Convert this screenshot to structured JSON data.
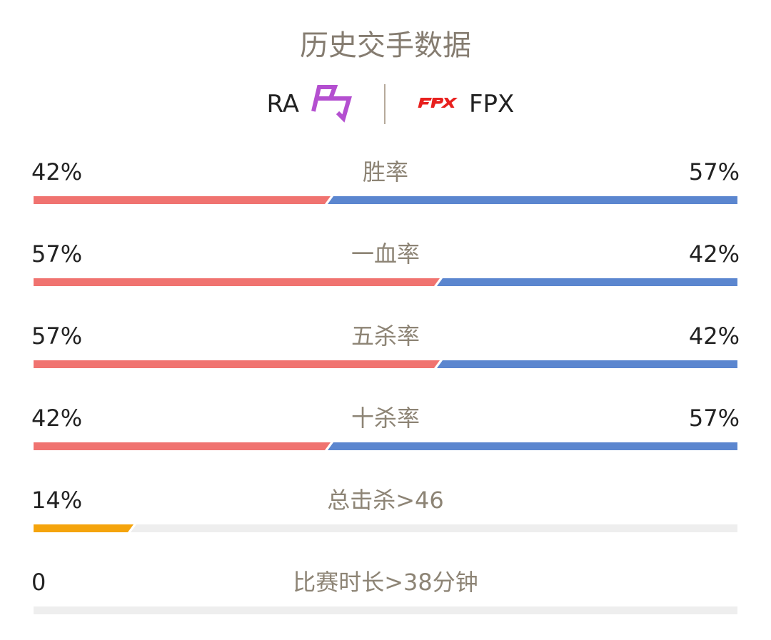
{
  "title": "历史交手数据",
  "teams": {
    "left": {
      "name": "RA",
      "logo": "ra-logo"
    },
    "right": {
      "name": "FPX",
      "logo": "fpx-logo"
    }
  },
  "colors": {
    "left": "#f07370",
    "right": "#5b86cf",
    "single": "#f5a40c",
    "track": "#eeeeee",
    "ra_logo": "#b44fd0",
    "fpx_logo": "#e8201e"
  },
  "stats": [
    {
      "label": "胜率",
      "left": "42%",
      "right": "57%",
      "left_fraction": 0.42,
      "type": "versus"
    },
    {
      "label": "一血率",
      "left": "57%",
      "right": "42%",
      "left_fraction": 0.575,
      "type": "versus"
    },
    {
      "label": "五杀率",
      "left": "57%",
      "right": "42%",
      "left_fraction": 0.575,
      "type": "versus"
    },
    {
      "label": "十杀率",
      "left": "42%",
      "right": "57%",
      "left_fraction": 0.42,
      "type": "versus"
    },
    {
      "label": "总击杀>46",
      "left": "14%",
      "left_fraction": 0.14,
      "type": "single"
    },
    {
      "label": "比赛时长>38分钟",
      "left": "0",
      "left_fraction": 0,
      "type": "single"
    }
  ]
}
